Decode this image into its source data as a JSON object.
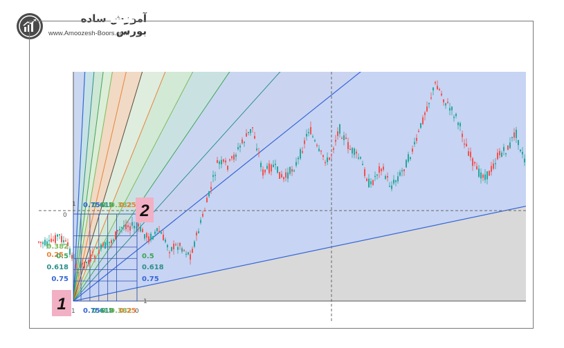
{
  "brand": {
    "title": "آموزش ساده بورس",
    "url": "www.Amoozesh-Boors.com"
  },
  "chart_data": {
    "type": "candlestick",
    "drawing_tool": "Gann Box / Fibonacci fans",
    "point_labels": [
      "1",
      "2"
    ],
    "fan_ratios": [
      "0",
      "0.25",
      "0.382",
      "0.5",
      "0.618",
      "0.75",
      "1"
    ],
    "box_edge_labels": {
      "start": "1",
      "end": "0"
    },
    "colors": {
      "candle_up": "#26a69a",
      "candle_down": "#ef5350",
      "point_marker": "#f2b0c4",
      "ratio_0": "#888888",
      "ratio_025": "#e8833a",
      "ratio_0382": "#7cba5a",
      "ratio_05": "#3fa35b",
      "ratio_0618": "#2e8f8a",
      "ratio_075": "#3566d6",
      "ratio_1": "#6a6a6a"
    }
  }
}
